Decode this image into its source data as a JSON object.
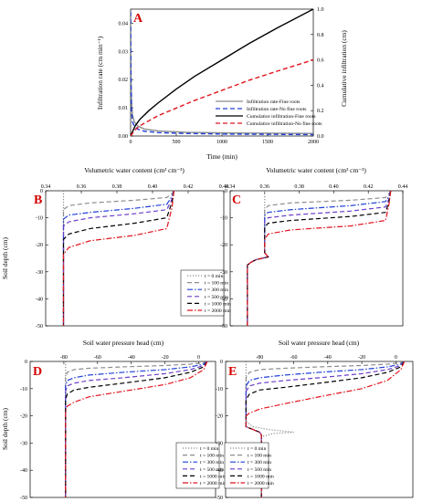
{
  "colors": {
    "gray": "#8c8c8c",
    "blue": "#1f3fd8",
    "black": "#000000",
    "red": "#e0141c",
    "purple": "#6a3dc8",
    "panel_label": "#d40000"
  },
  "chart_data": [
    {
      "type": "line",
      "panel": "A",
      "xlabel": "Time (min)",
      "ylabel": "Infiltration rate (cm min⁻¹)",
      "y2label": "Cumulative infiltration (cm)",
      "xlim": [
        0,
        2000
      ],
      "ylim": [
        0,
        0.045
      ],
      "y2lim": [
        0,
        1.0
      ],
      "xticks": [
        "0",
        "500",
        "1000",
        "1500",
        "2000"
      ],
      "yticks": [
        "0.00",
        "0.01",
        "0.02",
        "0.03",
        "0.04"
      ],
      "y2ticks": [
        "0.0",
        "0.2",
        "0.4",
        "0.6",
        "0.8",
        "1.0"
      ],
      "legend_position": "lower-right",
      "series": [
        {
          "name": "Infiltration rate-Fine roots",
          "axis": "left",
          "color": "gray",
          "dash": "solid",
          "x": [
            0,
            2,
            5,
            10,
            20,
            40,
            80,
            150,
            300,
            600,
            1000,
            1500,
            2000
          ],
          "y": [
            0.044,
            0.03,
            0.02,
            0.012,
            0.0075,
            0.005,
            0.0035,
            0.0025,
            0.0018,
            0.0013,
            0.0011,
            0.001,
            0.0009
          ]
        },
        {
          "name": "Infiltration rate-No fine roots",
          "axis": "left",
          "color": "blue",
          "dash": "dashed",
          "x": [
            0,
            2,
            5,
            10,
            20,
            40,
            80,
            150,
            300,
            600,
            1000,
            1500,
            2000
          ],
          "y": [
            0.044,
            0.028,
            0.017,
            0.009,
            0.005,
            0.0035,
            0.0024,
            0.0017,
            0.0012,
            0.0009,
            0.0007,
            0.0006,
            0.0005
          ]
        },
        {
          "name": "Cumulatice infiltration-Fine roots",
          "axis": "right",
          "color": "black",
          "dash": "solid",
          "x": [
            0,
            50,
            100,
            200,
            300,
            500,
            700,
            1000,
            1300,
            1600,
            2000
          ],
          "y": [
            0,
            0.08,
            0.13,
            0.2,
            0.26,
            0.37,
            0.47,
            0.6,
            0.73,
            0.85,
            1.0
          ]
        },
        {
          "name": "Cumulatice infiltration-No fine roots",
          "axis": "right",
          "color": "red",
          "dash": "dashed",
          "x": [
            0,
            50,
            100,
            200,
            300,
            500,
            700,
            1000,
            1300,
            1600,
            2000
          ],
          "y": [
            0,
            0.05,
            0.08,
            0.12,
            0.16,
            0.22,
            0.28,
            0.36,
            0.44,
            0.51,
            0.6
          ]
        }
      ]
    },
    {
      "type": "line",
      "panel": "B",
      "xlabel": "Volumetric water content (cm³ cm⁻³)",
      "ylabel": "Soil depth (cm)",
      "xlim": [
        0.34,
        0.44
      ],
      "ylim": [
        -50,
        0
      ],
      "xticks": [
        "0.34",
        "0.36",
        "0.38",
        "0.40",
        "0.42",
        "0.44"
      ],
      "yticks": [
        "0",
        "-10",
        "-20",
        "-30",
        "-40",
        "-50"
      ],
      "legend_position": "lower-right",
      "series": [
        {
          "name": "t = 0 min",
          "color": "gray",
          "dash": "dotted",
          "x": [
            0.35,
            0.35,
            0.35,
            0.35,
            0.35
          ],
          "y": [
            0,
            -10,
            -25,
            -40,
            -50
          ]
        },
        {
          "name": "t = 100 min",
          "color": "gray",
          "dash": "dashed",
          "x": [
            0.412,
            0.411,
            0.408,
            0.39,
            0.365,
            0.353,
            0.35,
            0.35,
            0.35
          ],
          "y": [
            0,
            -1,
            -2.5,
            -3.5,
            -4.5,
            -5.5,
            -7,
            -25,
            -50
          ]
        },
        {
          "name": "t = 300 min",
          "color": "blue",
          "dash": "dashdot",
          "x": [
            0.412,
            0.411,
            0.408,
            0.39,
            0.365,
            0.353,
            0.35,
            0.35,
            0.35
          ],
          "y": [
            0,
            -2,
            -5,
            -6.5,
            -8,
            -9,
            -10.5,
            -25,
            -50
          ]
        },
        {
          "name": "t = 500 min",
          "color": "purple",
          "dash": "dashed",
          "x": [
            0.412,
            0.411,
            0.408,
            0.39,
            0.365,
            0.353,
            0.35,
            0.35,
            0.35
          ],
          "y": [
            0,
            -3,
            -7,
            -8.5,
            -10,
            -11.5,
            -13,
            -25,
            -50
          ]
        },
        {
          "name": "t = 1000 min",
          "color": "black",
          "dash": "dashed",
          "x": [
            0.412,
            0.411,
            0.408,
            0.39,
            0.365,
            0.353,
            0.35,
            0.35,
            0.35
          ],
          "y": [
            0,
            -4,
            -10,
            -12,
            -14,
            -16,
            -18,
            -25,
            -50
          ]
        },
        {
          "name": "t = 2000 min",
          "color": "red",
          "dash": "dashdot",
          "x": [
            0.412,
            0.411,
            0.408,
            0.39,
            0.365,
            0.353,
            0.35,
            0.35,
            0.35
          ],
          "y": [
            0,
            -6,
            -14,
            -16.5,
            -18.5,
            -21,
            -23.5,
            -25,
            -50
          ]
        }
      ]
    },
    {
      "type": "line",
      "panel": "C",
      "xlabel": "Volumetric water content (cm³ cm⁻³)",
      "ylabel": "",
      "xlim": [
        0.34,
        0.44
      ],
      "ylim": [
        -50,
        0
      ],
      "xticks": [
        "0.34",
        "0.36",
        "0.38",
        "0.40",
        "0.42",
        "0.44"
      ],
      "yticks": [
        "0",
        "-10",
        "-20",
        "-30",
        "-40",
        "-50"
      ],
      "series": [
        {
          "name": "t = 0 min",
          "color": "gray",
          "dash": "dotted",
          "x": [
            0.36,
            0.36,
            0.362,
            0.355,
            0.352,
            0.35,
            0.35
          ],
          "y": [
            0,
            -23,
            -24.5,
            -25.5,
            -26.5,
            -27.5,
            -50
          ]
        },
        {
          "name": "t = 100 min",
          "color": "gray",
          "dash": "dashed",
          "x": [
            0.433,
            0.432,
            0.43,
            0.41,
            0.375,
            0.362,
            0.36,
            0.36,
            0.362,
            0.355,
            0.352,
            0.35,
            0.35
          ],
          "y": [
            0,
            -1,
            -2.5,
            -3.5,
            -4.5,
            -5.5,
            -7,
            -23,
            -24.5,
            -25.5,
            -26.5,
            -27.5,
            -50
          ]
        },
        {
          "name": "t = 300 min",
          "color": "blue",
          "dash": "dashdot",
          "x": [
            0.433,
            0.432,
            0.43,
            0.41,
            0.375,
            0.362,
            0.36,
            0.36,
            0.362,
            0.355,
            0.352,
            0.35,
            0.35
          ],
          "y": [
            0,
            -2,
            -4,
            -5.5,
            -7,
            -8,
            -9,
            -23,
            -24.5,
            -25.5,
            -26.5,
            -27.5,
            -50
          ]
        },
        {
          "name": "t = 500 min",
          "color": "purple",
          "dash": "dashed",
          "x": [
            0.433,
            0.432,
            0.43,
            0.41,
            0.375,
            0.362,
            0.36,
            0.36,
            0.362,
            0.355,
            0.352,
            0.35,
            0.35
          ],
          "y": [
            0,
            -3,
            -6,
            -7.5,
            -9,
            -10,
            -11,
            -23,
            -24.5,
            -25.5,
            -26.5,
            -27.5,
            -50
          ]
        },
        {
          "name": "t = 1000 min",
          "color": "black",
          "dash": "dashed",
          "x": [
            0.433,
            0.432,
            0.43,
            0.41,
            0.375,
            0.362,
            0.36,
            0.36,
            0.362,
            0.355,
            0.352,
            0.35,
            0.35
          ],
          "y": [
            0,
            -4,
            -8,
            -9.5,
            -11,
            -12,
            -13.5,
            -23,
            -24.5,
            -25.5,
            -26.5,
            -27.5,
            -50
          ]
        },
        {
          "name": "t = 2000 min",
          "color": "red",
          "dash": "dashdot",
          "x": [
            0.433,
            0.432,
            0.43,
            0.41,
            0.375,
            0.362,
            0.36,
            0.36,
            0.362,
            0.355,
            0.352,
            0.35,
            0.35
          ],
          "y": [
            0,
            -5,
            -11,
            -13,
            -14.5,
            -16,
            -18,
            -23,
            -24.5,
            -25.5,
            -26.5,
            -27.5,
            -50
          ]
        }
      ]
    },
    {
      "type": "line",
      "panel": "D",
      "xlabel": "Soil water pressure head (cm)",
      "ylabel": "Soil depth (cm)",
      "xlim": [
        -100,
        10
      ],
      "ylim": [
        -50,
        0
      ],
      "xticks": [
        "-80",
        "-60",
        "-40",
        "-20",
        "0"
      ],
      "yticks": [
        "0",
        "-10",
        "-20",
        "-30",
        "-40",
        "-50"
      ],
      "legend_position": "lower-right",
      "series": [
        {
          "name": "t = 0 min",
          "color": "gray",
          "dash": "dotted",
          "x": [
            -79,
            -79,
            -79
          ],
          "y": [
            0,
            -25,
            -50
          ]
        },
        {
          "name": "t = 100 min",
          "color": "gray",
          "dash": "dashed",
          "x": [
            5,
            3,
            -5,
            -20,
            -45,
            -65,
            -74,
            -78,
            -79,
            -79
          ],
          "y": [
            0,
            -0.5,
            -1,
            -1.5,
            -2,
            -2.5,
            -3,
            -4,
            -6,
            -50
          ]
        },
        {
          "name": "t = 300 min",
          "color": "blue",
          "dash": "dashdot",
          "x": [
            5,
            3,
            -5,
            -20,
            -45,
            -65,
            -74,
            -78,
            -79,
            -79
          ],
          "y": [
            0,
            -1,
            -2,
            -3,
            -4,
            -5,
            -6,
            -7,
            -9,
            -50
          ]
        },
        {
          "name": "t = 500 min",
          "color": "purple",
          "dash": "dashed",
          "x": [
            5,
            3,
            -5,
            -20,
            -45,
            -65,
            -74,
            -78,
            -79,
            -79
          ],
          "y": [
            0,
            -1.5,
            -3,
            -4.5,
            -6,
            -7,
            -8,
            -9,
            -11,
            -50
          ]
        },
        {
          "name": "t = 1000 min",
          "color": "black",
          "dash": "dashed",
          "x": [
            5,
            3,
            -5,
            -20,
            -45,
            -65,
            -74,
            -78,
            -79,
            -79
          ],
          "y": [
            0,
            -2,
            -4,
            -6,
            -8,
            -9.5,
            -10.5,
            -12,
            -14,
            -50
          ]
        },
        {
          "name": "t = 2000 min",
          "color": "red",
          "dash": "dashdot",
          "x": [
            5,
            3,
            -5,
            -20,
            -45,
            -65,
            -74,
            -78,
            -79,
            -79
          ],
          "y": [
            0,
            -3,
            -6,
            -8.5,
            -11,
            -13,
            -15,
            -16.5,
            -18,
            -50
          ]
        }
      ]
    },
    {
      "type": "line",
      "panel": "E",
      "xlabel": "Soil water pressure head (cm)",
      "ylabel": "",
      "xlim": [
        -100,
        10
      ],
      "ylim": [
        -50,
        0
      ],
      "xticks": [
        "-80",
        "-60",
        "-40",
        "-20",
        "0"
      ],
      "yticks": [
        "0",
        "-10",
        "-20",
        "-30",
        "-40",
        "-50"
      ],
      "legend_position": "lower-left",
      "series": [
        {
          "name": "t = 0 min",
          "color": "gray",
          "dash": "dotted",
          "x": [
            -88,
            -88,
            -84,
            -75,
            -60,
            -72,
            -78,
            -79,
            -79
          ],
          "y": [
            0,
            -22,
            -24,
            -25,
            -26,
            -26.5,
            -27.5,
            -28,
            -50
          ]
        },
        {
          "name": "t = 100 min",
          "color": "gray",
          "dash": "dashed",
          "x": [
            5,
            3,
            -5,
            -20,
            -45,
            -65,
            -80,
            -86,
            -88,
            -88,
            -80,
            -79,
            -79
          ],
          "y": [
            0,
            -0.5,
            -1,
            -1.5,
            -2,
            -2.5,
            -3,
            -4,
            -6,
            -24,
            -26,
            -27,
            -50
          ]
        },
        {
          "name": "t = 300 min",
          "color": "blue",
          "dash": "dashdot",
          "x": [
            5,
            3,
            -5,
            -20,
            -45,
            -65,
            -80,
            -86,
            -88,
            -88,
            -80,
            -79,
            -79
          ],
          "y": [
            0,
            -1,
            -2,
            -3,
            -4,
            -5,
            -6,
            -7,
            -9,
            -24,
            -26,
            -27,
            -50
          ]
        },
        {
          "name": "t = 500 min",
          "color": "purple",
          "dash": "dashed",
          "x": [
            5,
            3,
            -5,
            -20,
            -45,
            -65,
            -80,
            -86,
            -88,
            -88,
            -80,
            -79,
            -79
          ],
          "y": [
            0,
            -1.5,
            -3,
            -4.5,
            -6,
            -7,
            -8,
            -9,
            -11,
            -24,
            -26,
            -27,
            -50
          ]
        },
        {
          "name": "t = 1000 min",
          "color": "black",
          "dash": "dashed",
          "x": [
            5,
            3,
            -5,
            -20,
            -45,
            -65,
            -80,
            -86,
            -88,
            -88,
            -80,
            -79,
            -79
          ],
          "y": [
            0,
            -2,
            -4,
            -6,
            -8,
            -9.5,
            -10.5,
            -12,
            -14,
            -24,
            -26,
            -27,
            -50
          ]
        },
        {
          "name": "t = 2000 min",
          "color": "red",
          "dash": "dashdot",
          "x": [
            5,
            3,
            -5,
            -20,
            -45,
            -65,
            -80,
            -86,
            -88,
            -88,
            -80,
            -79,
            -79
          ],
          "y": [
            0,
            -3,
            -7,
            -10,
            -13,
            -15.5,
            -17.5,
            -19,
            -20,
            -24,
            -26,
            -27,
            -50
          ]
        }
      ]
    }
  ]
}
